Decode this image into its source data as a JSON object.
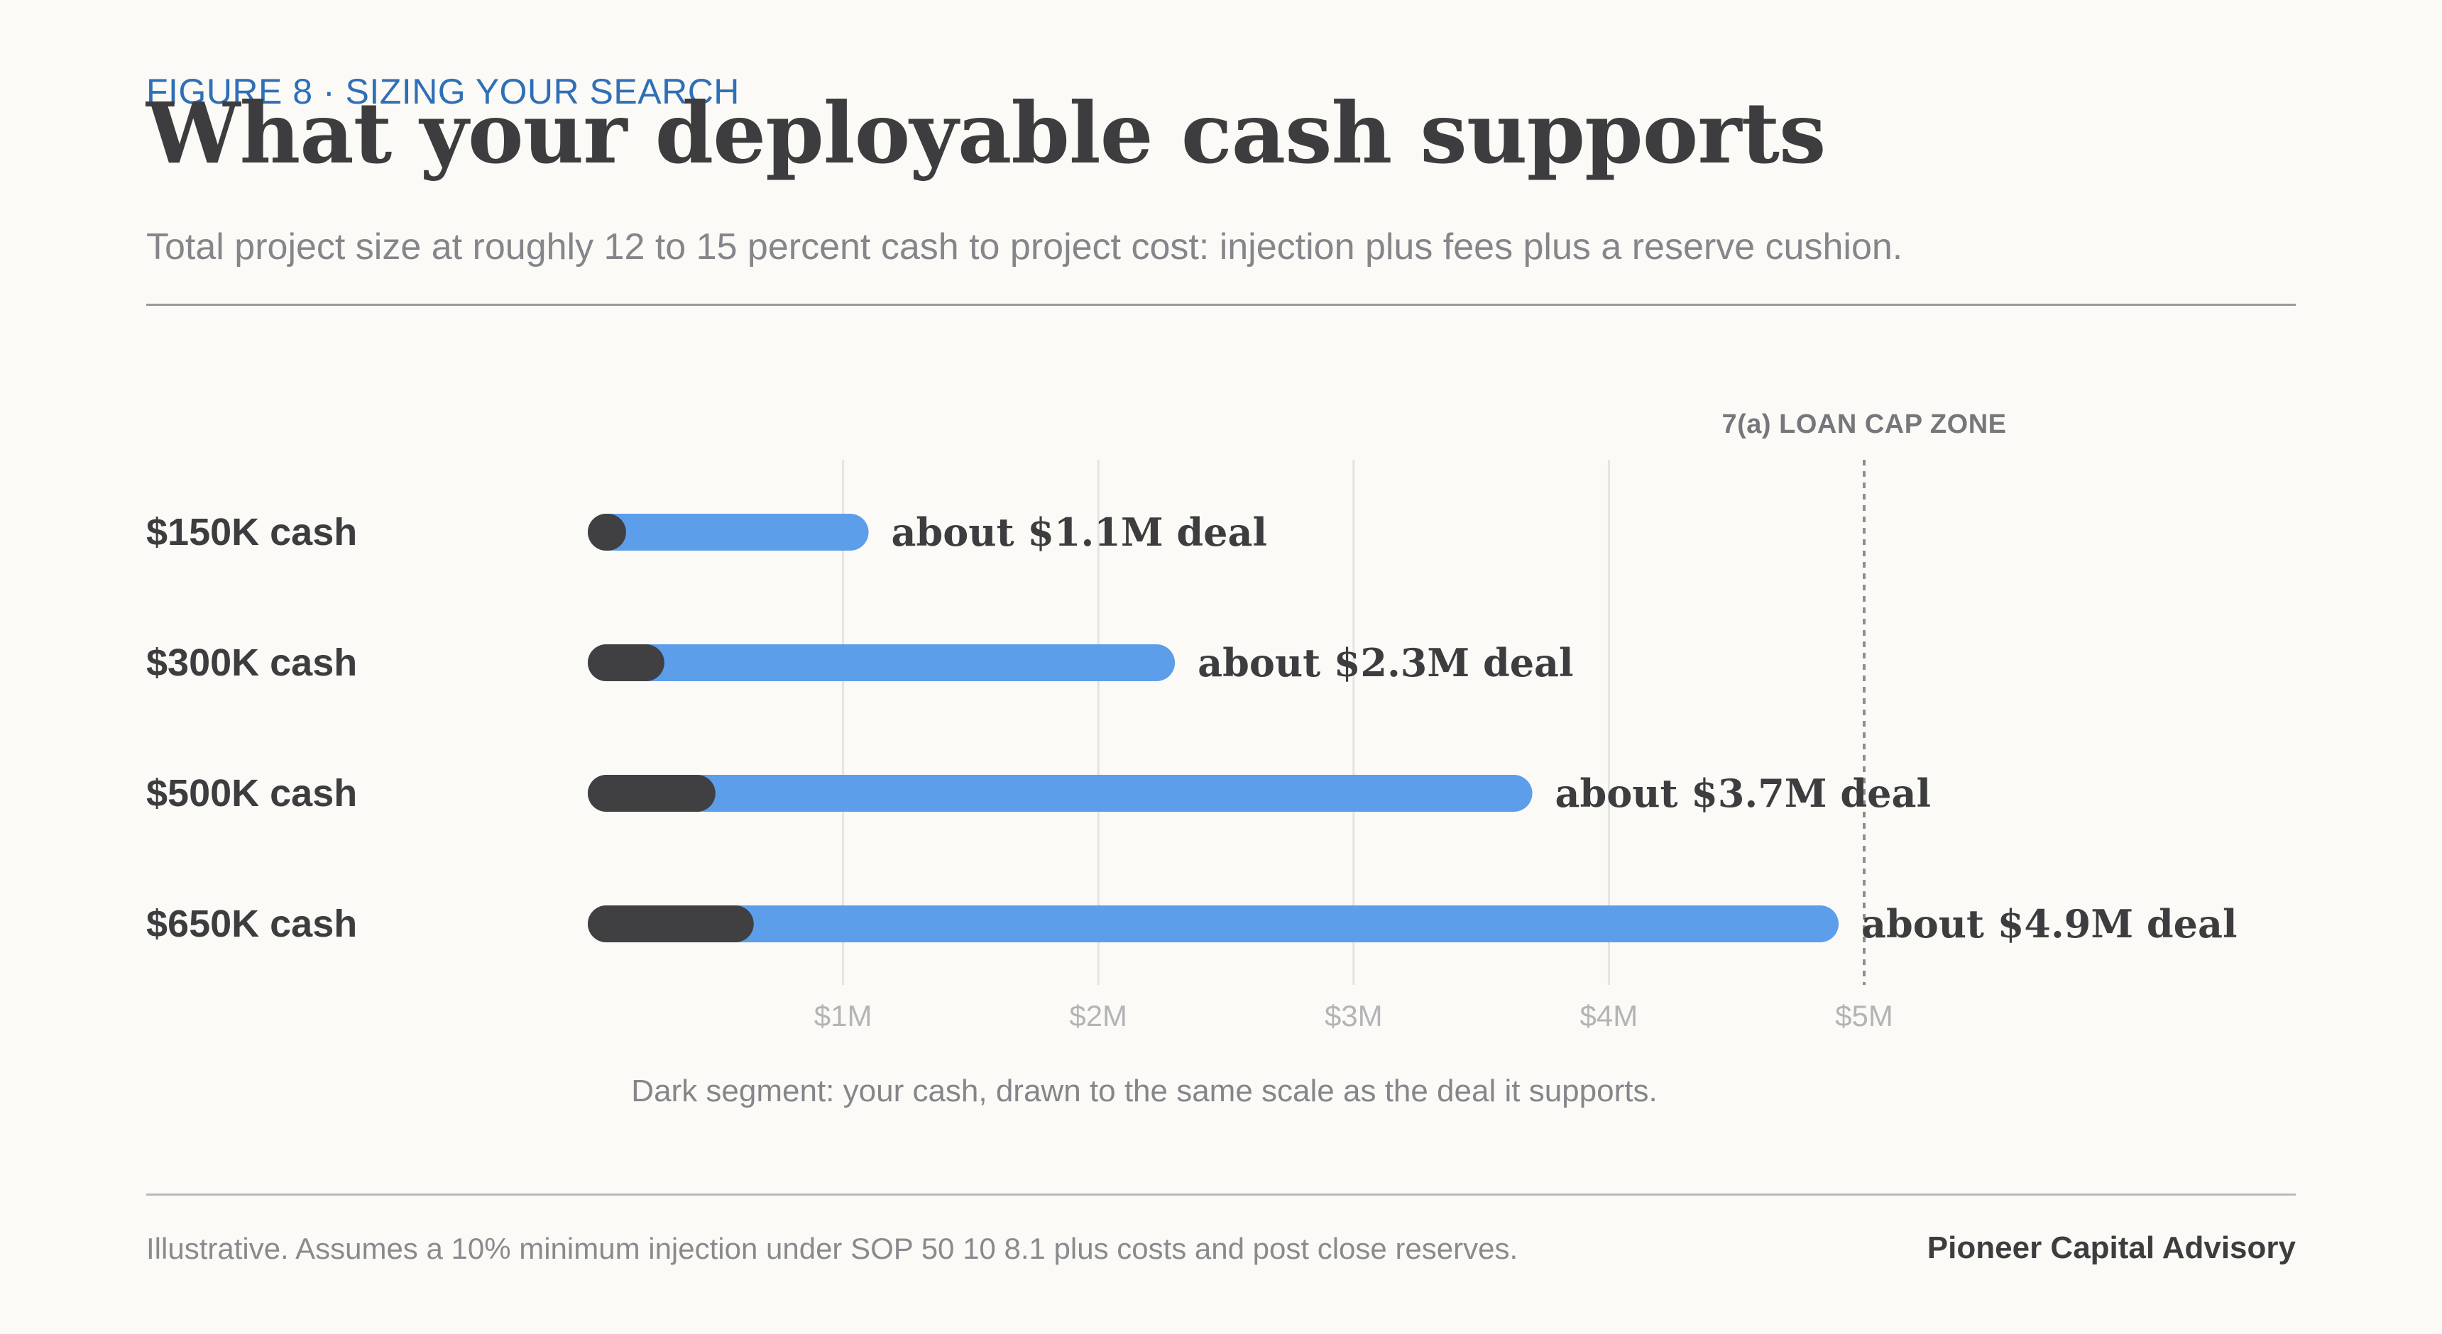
{
  "header": {
    "eyebrow": "FIGURE 8  ·  SIZING YOUR SEARCH",
    "title": "What your deployable cash supports",
    "subtitle": "Total project size at roughly 12 to 15 percent cash to project cost: injection plus fees plus a reserve cushion."
  },
  "colors": {
    "cash": "#404042",
    "deal": "#5c9eea",
    "grid": "#e4e4e2",
    "marker": "#8e8e90",
    "tick": "#b4b4b6",
    "accent": "#2f6fb6"
  },
  "chart_data": {
    "type": "bar",
    "orientation": "horizontal",
    "stacked": "overlay",
    "categories": [
      "$150K cash",
      "$300K cash",
      "$500K cash",
      "$650K cash"
    ],
    "series": [
      {
        "values": [
          0.15,
          0.3,
          0.5,
          0.65
        ]
      },
      {
        "values": [
          1.1,
          2.3,
          3.7,
          4.9
        ]
      }
    ],
    "data_labels": [
      "about $1.1M deal",
      "about $2.3M deal",
      "about $3.7M deal",
      "about $4.9M deal"
    ],
    "x_ticks": [
      {
        "value": 1,
        "label": "$1M"
      },
      {
        "value": 2,
        "label": "$2M"
      },
      {
        "value": 3,
        "label": "$3M"
      },
      {
        "value": 4,
        "label": "$4M"
      },
      {
        "value": 5,
        "label": "$5M"
      }
    ],
    "xlim": [
      0,
      5
    ],
    "x_unit": "millions of dollars",
    "grid": true,
    "reference_line": {
      "value": 5,
      "label": "7(a) LOAN CAP ZONE"
    },
    "note": "Dark segment: your cash, drawn to the same scale as the deal it supports."
  },
  "footer": {
    "footnote": "Illustrative. Assumes a 10% minimum injection under SOP 50 10 8.1 plus costs and post close reserves.",
    "brand": "Pioneer Capital Advisory"
  }
}
